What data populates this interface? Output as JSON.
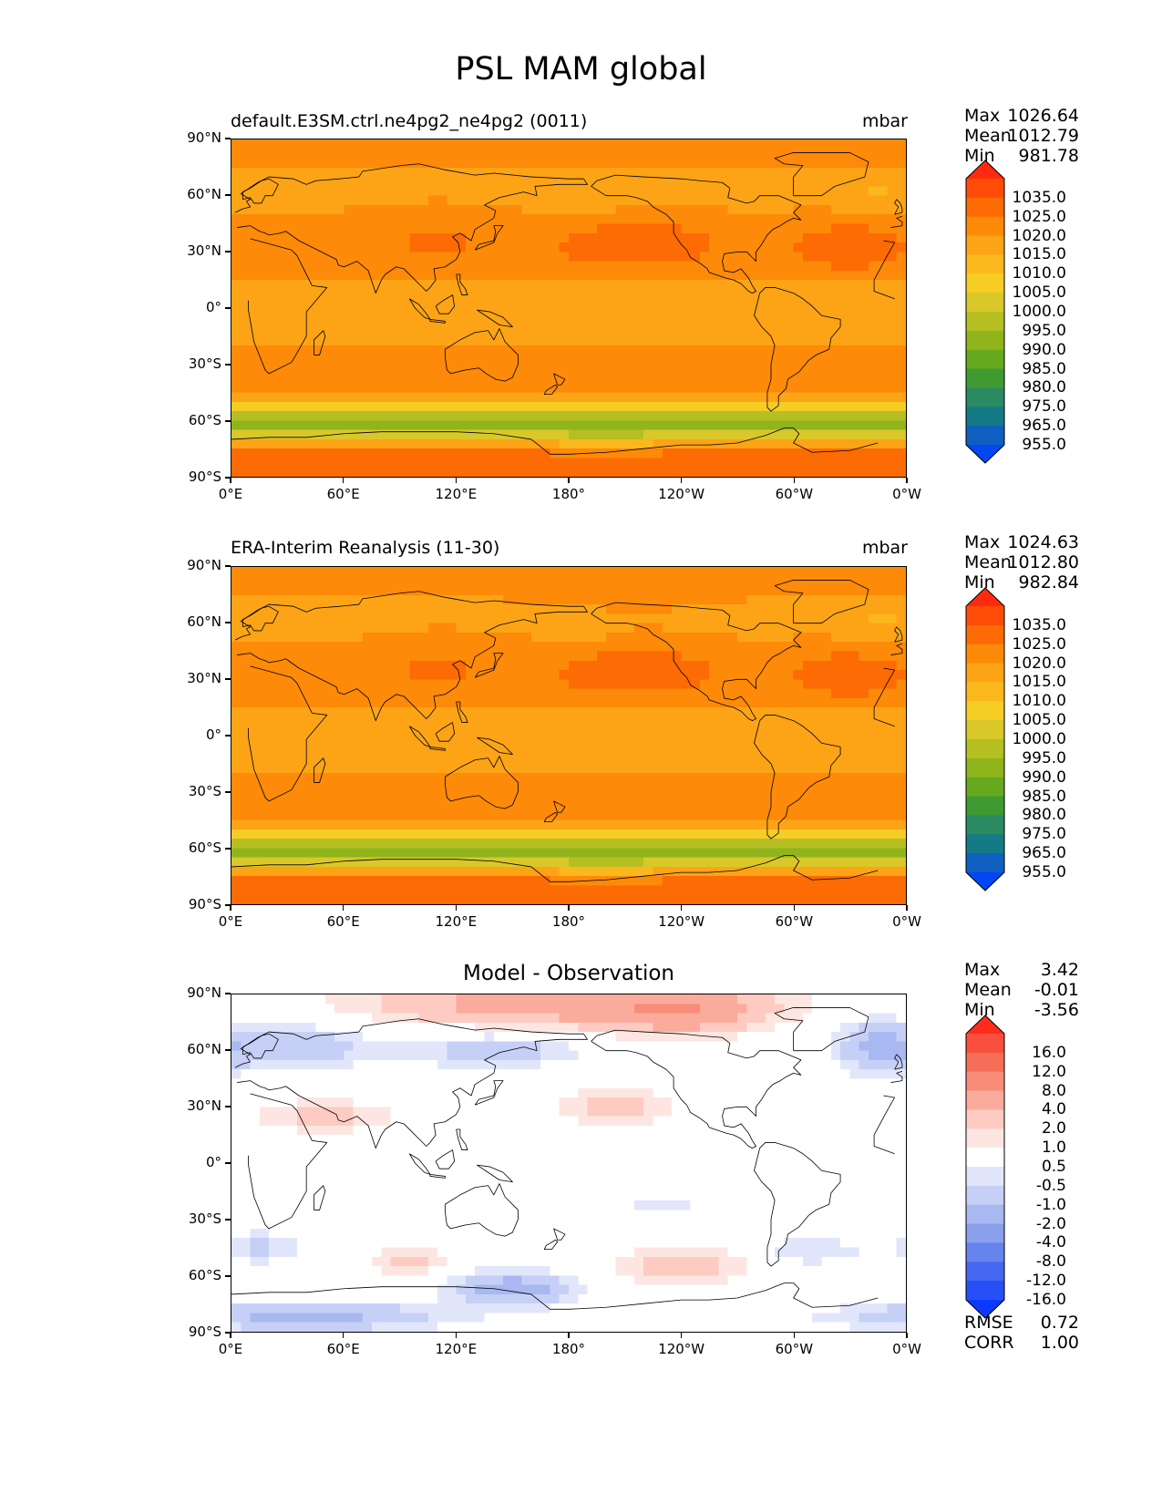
{
  "figure": {
    "title": "PSL MAM global"
  },
  "panels": [
    {
      "id": "model",
      "title": "default.E3SM.ctrl.ne4pg2_ne4pg2 (0011)",
      "units": "mbar",
      "stats": {
        "rows": [
          {
            "label": "Max",
            "value": "1026.64"
          },
          {
            "label": "Mean",
            "value": "1012.79"
          },
          {
            "label": "Min",
            "value": "981.78"
          }
        ]
      },
      "field": "model"
    },
    {
      "id": "obs",
      "title": "ERA-Interim Reanalysis (11-30)",
      "units": "mbar",
      "stats": {
        "rows": [
          {
            "label": "Max",
            "value": "1024.63"
          },
          {
            "label": "Mean",
            "value": "1012.80"
          },
          {
            "label": "Min",
            "value": "982.84"
          }
        ]
      },
      "field": "obs"
    },
    {
      "id": "diff",
      "title": "Model - Observation",
      "units": "",
      "stats": {
        "rows": [
          {
            "label": "Max",
            "value": "3.42"
          },
          {
            "label": "Mean",
            "value": "-0.01"
          },
          {
            "label": "Min",
            "value": "-3.56"
          }
        ]
      },
      "extra_stats": {
        "rows": [
          {
            "label": "RMSE",
            "value": "0.72"
          },
          {
            "label": "CORR",
            "value": "1.00"
          }
        ]
      },
      "field": "diff"
    }
  ],
  "lat_ticks": [
    "90°N",
    "60°N",
    "30°N",
    "0°",
    "30°S",
    "60°S",
    "90°S"
  ],
  "lon_ticks": [
    "0°E",
    "60°E",
    "120°E",
    "180°",
    "120°W",
    "60°W",
    "0°W"
  ],
  "colorbars": {
    "psl": {
      "labels": [
        "1035.0",
        "1025.0",
        "1020.0",
        "1015.0",
        "1010.0",
        "1005.0",
        "1000.0",
        "995.0",
        "990.0",
        "985.0",
        "980.0",
        "975.0",
        "965.0",
        "955.0"
      ],
      "colors": [
        "#fe2a0f",
        "#fe4b08",
        "#fd6b04",
        "#fd8a08",
        "#fca416",
        "#fbb81c",
        "#f6cd25",
        "#d9c829",
        "#b5bf22",
        "#90b51c",
        "#66a91f",
        "#3f9a32",
        "#2a8a62",
        "#147a86",
        "#0e5fc0",
        "#0346f4"
      ],
      "top_color": "#fe2a0f",
      "bottom_color": "#0346f4"
    },
    "diff": {
      "labels": [
        "16.0",
        "12.0",
        "8.0",
        "4.0",
        "2.0",
        "1.0",
        "0.5",
        "-0.5",
        "-1.0",
        "-2.0",
        "-4.0",
        "-8.0",
        "-12.0",
        "-16.0"
      ],
      "colors": [
        "#fe2d1b",
        "#f8503d",
        "#f66e58",
        "#f88c78",
        "#fbab9c",
        "#fdcbc2",
        "#fde6e1",
        "#ffffff",
        "#e1e6fb",
        "#c6d0f6",
        "#a8b8f0",
        "#8aa0ec",
        "#6683ee",
        "#4566f1",
        "#2650f6",
        "#0a3bfc"
      ],
      "top_color": "#fe2d1b",
      "bottom_color": "#0a3bfc"
    }
  }
}
